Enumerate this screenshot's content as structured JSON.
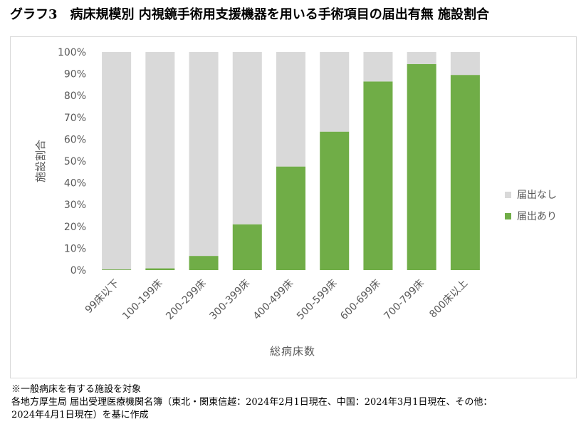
{
  "title": "グラフ3　病床規模別 内視鏡手術用支援機器を用いる手術項目の届出有無 施設割合",
  "notes": [
    "※一般病床を有する施設を対象",
    "各地方厚生局 届出受理医療機関名簿（東北・関東信越：2024年2月1日現在、中国：2024年3月1日現在、その他：",
    "2024年4月1日現在）を基に作成"
  ],
  "chart_data": {
    "type": "bar",
    "stacked": true,
    "categories": [
      "99床以下",
      "100-199床",
      "200-299床",
      "300-399床",
      "400-499床",
      "500-599床",
      "600-699床",
      "700-799床",
      "800床以上"
    ],
    "series": [
      {
        "name": "届出あり",
        "color": "#70ad47",
        "values": [
          0.3,
          0.8,
          6.5,
          21,
          47.5,
          63.5,
          86.5,
          94.5,
          89.5
        ]
      },
      {
        "name": "届出なし",
        "color": "#d9d9d9",
        "values": [
          99.7,
          99.2,
          93.5,
          79,
          52.5,
          36.5,
          13.5,
          5.5,
          10.5
        ]
      }
    ],
    "ylabel": "施設割合",
    "xlabel": "総病床数",
    "ylim": [
      0,
      100
    ],
    "ytick_labels": [
      "0%",
      "10%",
      "20%",
      "30%",
      "40%",
      "50%",
      "60%",
      "70%",
      "80%",
      "90%",
      "100%"
    ],
    "legend": [
      {
        "label": "届出なし",
        "color": "#d9d9d9"
      },
      {
        "label": "届出あり",
        "color": "#70ad47"
      }
    ],
    "legend_position": "right",
    "grid": false
  }
}
